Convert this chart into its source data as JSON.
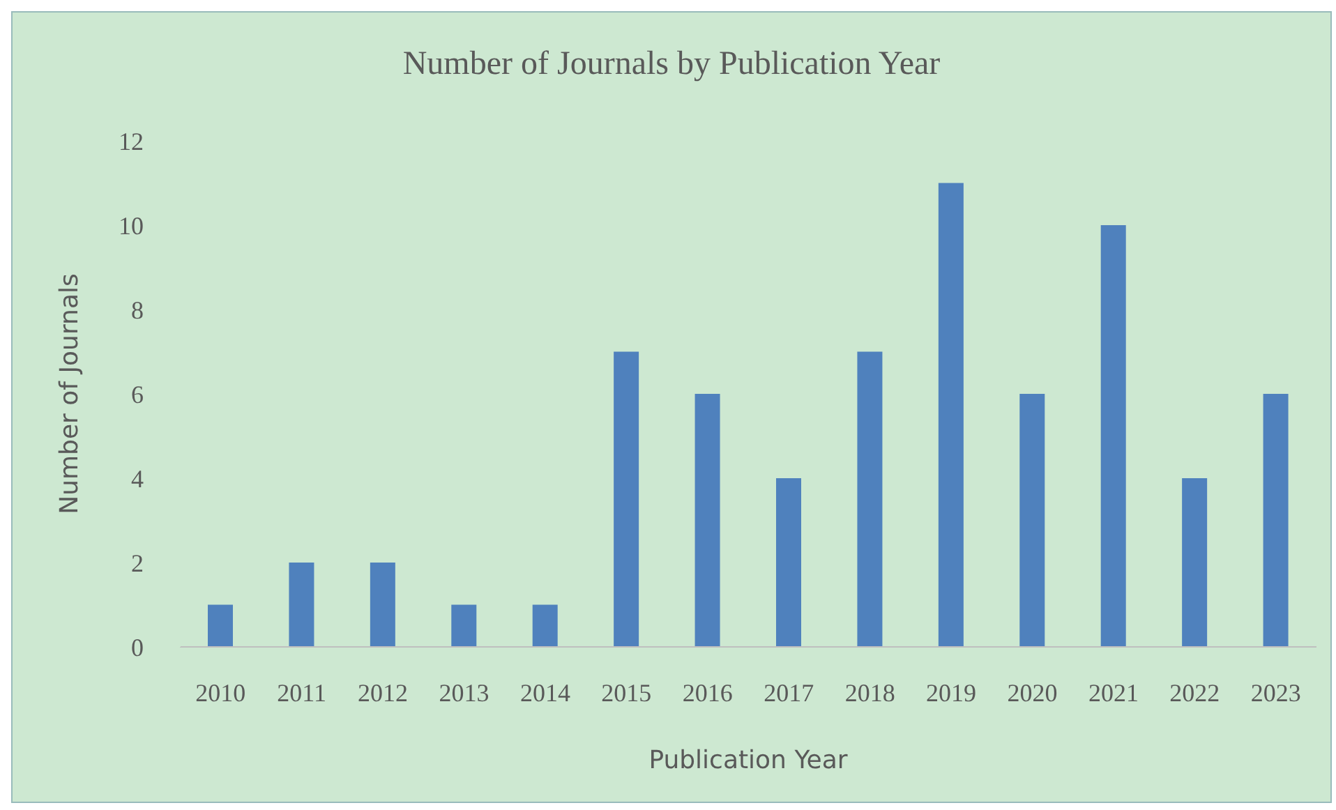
{
  "chart_data": {
    "type": "bar",
    "title": "Number of Journals by Publication Year",
    "xlabel": "Publication Year",
    "ylabel": "Number of Journals",
    "categories": [
      "2010",
      "2011",
      "2012",
      "2013",
      "2014",
      "2015",
      "2016",
      "2017",
      "2018",
      "2019",
      "2020",
      "2021",
      "2022",
      "2023"
    ],
    "values": [
      1,
      2,
      2,
      1,
      1,
      7,
      6,
      4,
      7,
      11,
      6,
      10,
      4,
      6
    ],
    "color": "#4f81bd",
    "ylim": [
      0,
      12
    ],
    "yticks": [
      0,
      2,
      4,
      6,
      8,
      10,
      12
    ],
    "grid": false,
    "legend": false
  }
}
